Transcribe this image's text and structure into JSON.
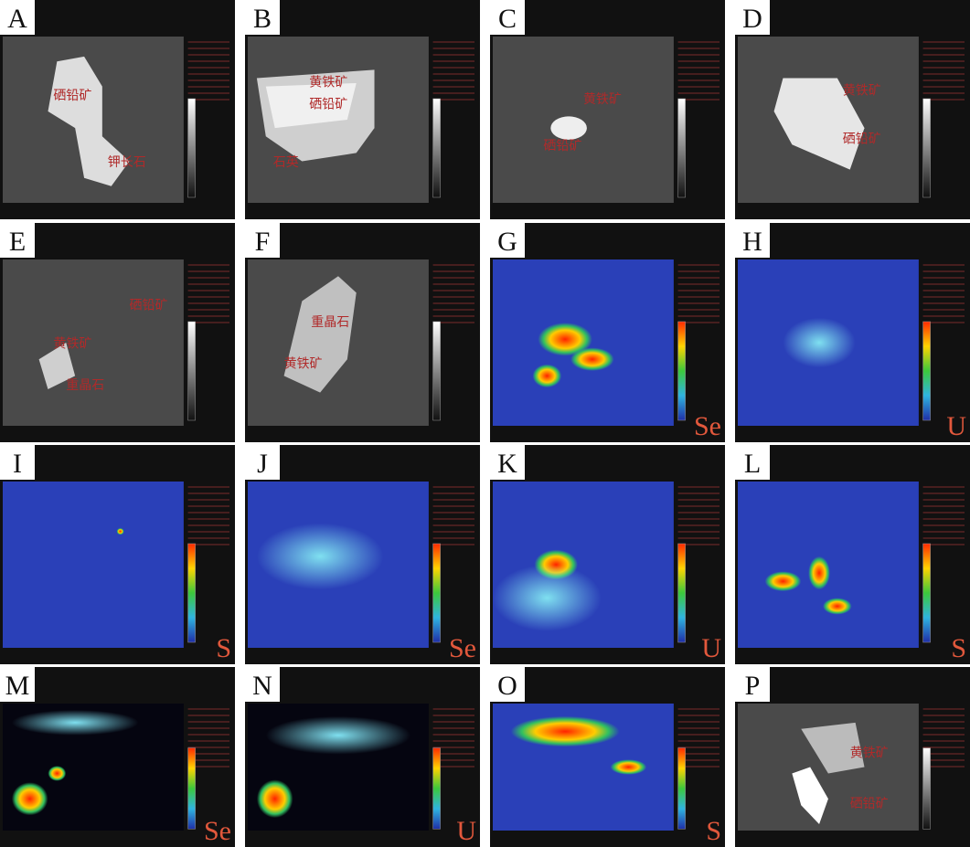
{
  "panels": [
    {
      "letter": "A",
      "labels": [
        "硒铅矿",
        "钾长石"
      ]
    },
    {
      "letter": "B",
      "labels": [
        "黄铁矿",
        "硒铅矿",
        "石英"
      ]
    },
    {
      "letter": "C",
      "labels": [
        "黄铁矿",
        "硒铅矿"
      ]
    },
    {
      "letter": "D",
      "labels": [
        "黄铁矿",
        "硒铅矿"
      ]
    },
    {
      "letter": "E",
      "labels": [
        "硒铅矿",
        "黄铁矿",
        "重晶石"
      ]
    },
    {
      "letter": "F",
      "labels": [
        "重晶石",
        "黄铁矿"
      ]
    },
    {
      "letter": "G",
      "element": "Se"
    },
    {
      "letter": "H",
      "element": "U"
    },
    {
      "letter": "I",
      "element": "S"
    },
    {
      "letter": "J",
      "element": "Se"
    },
    {
      "letter": "K",
      "element": "U"
    },
    {
      "letter": "L",
      "element": "S"
    },
    {
      "letter": "M",
      "element": "Se"
    },
    {
      "letter": "N",
      "element": "U"
    },
    {
      "letter": "O",
      "element": "S"
    },
    {
      "letter": "P",
      "labels": [
        "黄铁矿",
        "硒铅矿"
      ]
    }
  ]
}
